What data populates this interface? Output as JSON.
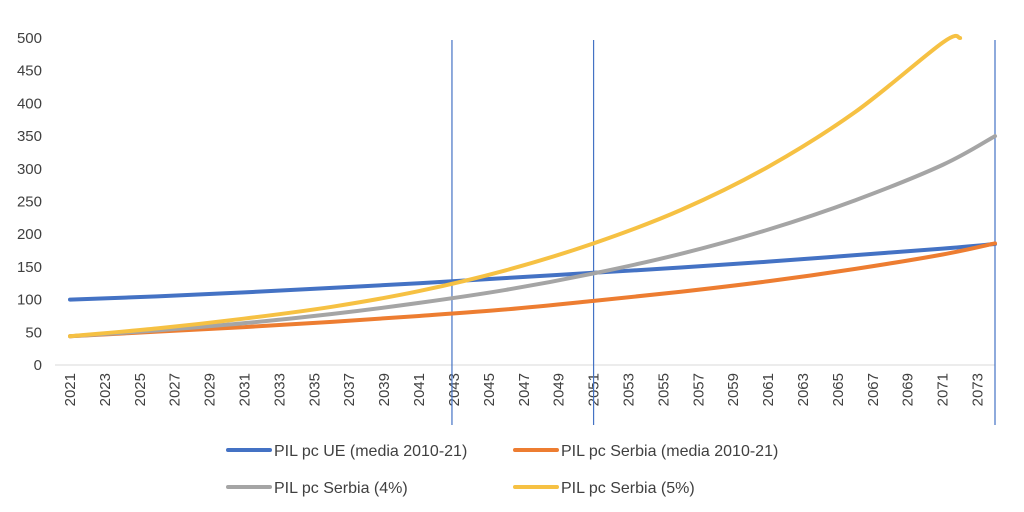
{
  "chart_data": {
    "type": "line",
    "title": "",
    "xlabel": "",
    "ylabel": "",
    "ylim": [
      0,
      500
    ],
    "y_ticks": [
      "0",
      "50",
      "100",
      "150",
      "200",
      "250",
      "300",
      "350",
      "400",
      "450",
      "500"
    ],
    "x_tick_labels": [
      "2021",
      "2023",
      "2025",
      "2027",
      "2029",
      "2031",
      "2033",
      "2035",
      "2037",
      "2039",
      "2041",
      "2043",
      "2045",
      "2047",
      "2049",
      "2051",
      "2053",
      "2055",
      "2057",
      "2059",
      "2061",
      "2063",
      "2065",
      "2067",
      "2069",
      "2071",
      "2073"
    ],
    "x_range": [
      2021,
      2074
    ],
    "grid": false,
    "legend_position": "bottom",
    "reference_lines_x": [
      2043,
      2051,
      2074
    ],
    "reference_line_color": "#4472c4",
    "series": [
      {
        "name": "PIL pc UE (media 2010-21)",
        "color": "#4472c4",
        "x": [
          2021,
          2026,
          2031,
          2036,
          2041,
          2046,
          2051,
          2056,
          2061,
          2066,
          2071,
          2074
        ],
        "y": [
          100,
          105,
          111,
          118,
          125,
          133,
          141,
          149,
          158,
          168,
          178,
          185
        ]
      },
      {
        "name": "PIL pc Serbia (media 2010-21)",
        "color": "#ed7d31",
        "x": [
          2021,
          2026,
          2031,
          2036,
          2041,
          2046,
          2051,
          2056,
          2061,
          2066,
          2071,
          2074
        ],
        "y": [
          44,
          51,
          58,
          66,
          75,
          85,
          98,
          112,
          128,
          147,
          169,
          186
        ]
      },
      {
        "name": "PIL pc Serbia (4%)",
        "color": "#a5a5a5",
        "x": [
          2021,
          2026,
          2031,
          2036,
          2041,
          2046,
          2051,
          2056,
          2061,
          2066,
          2071,
          2074
        ],
        "y": [
          44,
          53,
          64,
          78,
          95,
          115,
          140,
          170,
          207,
          252,
          306,
          350
        ]
      },
      {
        "name": "PIL pc Serbia (5%)",
        "color": "#f6c143",
        "x": [
          2021,
          2026,
          2031,
          2036,
          2041,
          2046,
          2051,
          2056,
          2061,
          2066,
          2071,
          2072
        ],
        "y": [
          44,
          56,
          71,
          89,
          113,
          145,
          186,
          237,
          303,
          387,
          493,
          500
        ]
      }
    ]
  }
}
